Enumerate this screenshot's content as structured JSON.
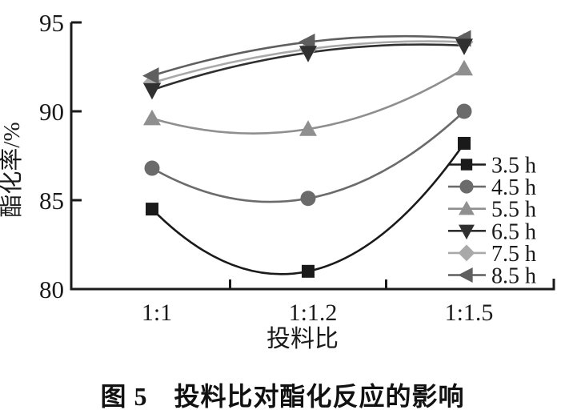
{
  "caption": "图 5　投料比对酯化反应的影响",
  "chart_data": {
    "type": "line",
    "title": "",
    "xlabel": "投料比",
    "ylabel": "酯化率/%",
    "categories": [
      "1:1",
      "1:1.2",
      "1:1.5"
    ],
    "series": [
      {
        "name": "3.5 h",
        "marker": "square-icon",
        "color": "#1a1a1a",
        "values": [
          84.5,
          81.0,
          88.2
        ]
      },
      {
        "name": "4.5 h",
        "marker": "circle-icon",
        "color": "#6b6b6b",
        "values": [
          86.8,
          85.1,
          90.0
        ]
      },
      {
        "name": "5.5 h",
        "marker": "triangle-up-icon",
        "color": "#8f8f8f",
        "values": [
          89.6,
          89.0,
          92.4
        ]
      },
      {
        "name": "6.5 h",
        "marker": "triangle-down-icon",
        "color": "#303030",
        "values": [
          91.2,
          93.3,
          93.7
        ]
      },
      {
        "name": "7.5 h",
        "marker": "diamond-icon",
        "color": "#a9a9a9",
        "values": [
          91.6,
          93.5,
          93.9
        ]
      },
      {
        "name": "8.5 h",
        "marker": "triangle-left-icon",
        "color": "#5f5f5f",
        "values": [
          92.0,
          93.9,
          94.1
        ]
      }
    ],
    "ylim": [
      80,
      95
    ],
    "yticks": [
      80,
      85,
      90,
      95
    ],
    "grid": false,
    "legend_position": "inside-bottom-right",
    "axis_color": "#1a1a1a",
    "background_color": "#ffffff"
  }
}
